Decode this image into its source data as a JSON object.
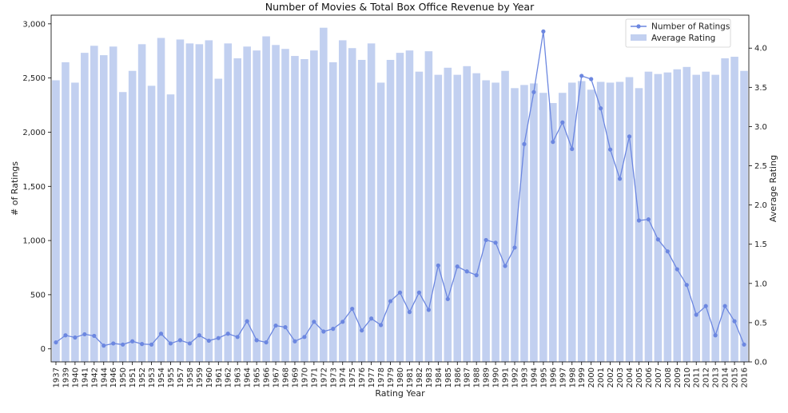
{
  "chart_data": {
    "type": "bar+line",
    "title": "Number of Movies & Total Box Office Revenue by Year",
    "xlabel": "Rating Year",
    "ylabel_left": "# of Ratings",
    "ylabel_right": "Average Rating",
    "ylim_left": [
      -120,
      3080
    ],
    "ylim_right": [
      0.0,
      4.42
    ],
    "yticks_left": [
      0,
      500,
      1000,
      1500,
      2000,
      2500,
      3000
    ],
    "yticks_left_labels": [
      "0",
      "500",
      "1,000",
      "1,500",
      "2,000",
      "2,500",
      "3,000"
    ],
    "yticks_right": [
      0.0,
      0.5,
      1.0,
      1.5,
      2.0,
      2.5,
      3.0,
      3.5,
      4.0
    ],
    "yticks_right_labels": [
      "0.0",
      "0.5",
      "1.0",
      "1.5",
      "2.0",
      "2.5",
      "3.0",
      "3.5",
      "4.0"
    ],
    "categories": [
      "1937",
      "1939",
      "1940",
      "1941",
      "1942",
      "1944",
      "1946",
      "1950",
      "1951",
      "1952",
      "1953",
      "1954",
      "1955",
      "1957",
      "1958",
      "1959",
      "1960",
      "1961",
      "1962",
      "1963",
      "1964",
      "1965",
      "1966",
      "1967",
      "1968",
      "1969",
      "1970",
      "1971",
      "1972",
      "1973",
      "1974",
      "1975",
      "1976",
      "1977",
      "1978",
      "1979",
      "1980",
      "1981",
      "1982",
      "1983",
      "1984",
      "1985",
      "1986",
      "1987",
      "1988",
      "1989",
      "1990",
      "1991",
      "1992",
      "1993",
      "1994",
      "1995",
      "1996",
      "1997",
      "1998",
      "1999",
      "2000",
      "2001",
      "2002",
      "2003",
      "2004",
      "2005",
      "2006",
      "2007",
      "2008",
      "2009",
      "2010",
      "2011",
      "2012",
      "2013",
      "2014",
      "2015",
      "2016"
    ],
    "legend": {
      "position": "top-right",
      "entries": [
        "Number of Ratings",
        "Average Rating"
      ]
    },
    "grid": false,
    "colors": {
      "line": "#6c87e0",
      "bar": "#c2d0f0"
    },
    "series": [
      {
        "name": "Average Rating",
        "type": "bar",
        "axis": "right",
        "values": [
          3.59,
          3.82,
          3.56,
          3.94,
          4.03,
          3.91,
          4.02,
          3.44,
          3.71,
          4.05,
          3.52,
          4.13,
          3.41,
          4.11,
          4.06,
          4.05,
          4.1,
          3.61,
          4.06,
          3.87,
          4.02,
          3.97,
          4.15,
          4.04,
          3.99,
          3.9,
          3.86,
          3.97,
          4.26,
          3.82,
          4.1,
          4.0,
          3.85,
          4.06,
          3.56,
          3.85,
          3.94,
          3.97,
          3.7,
          3.96,
          3.66,
          3.75,
          3.66,
          3.77,
          3.68,
          3.59,
          3.56,
          3.71,
          3.49,
          3.53,
          3.55,
          3.43,
          3.3,
          3.43,
          3.56,
          3.58,
          3.47,
          3.57,
          3.56,
          3.57,
          3.63,
          3.49,
          3.7,
          3.67,
          3.69,
          3.73,
          3.76,
          3.66,
          3.7,
          3.66,
          3.87,
          3.89,
          3.71
        ]
      },
      {
        "name": "Number of Ratings",
        "type": "line",
        "axis": "left",
        "values": [
          60,
          125,
          105,
          135,
          120,
          30,
          50,
          40,
          70,
          45,
          40,
          140,
          50,
          80,
          50,
          125,
          75,
          100,
          140,
          110,
          255,
          80,
          60,
          215,
          200,
          70,
          110,
          250,
          160,
          185,
          250,
          370,
          170,
          280,
          220,
          440,
          520,
          340,
          520,
          360,
          770,
          460,
          760,
          715,
          680,
          1005,
          980,
          765,
          935,
          1890,
          2370,
          2930,
          1910,
          2090,
          1845,
          2520,
          2490,
          2220,
          1840,
          1570,
          1960,
          1185,
          1195,
          1010,
          900,
          735,
          590,
          315,
          395,
          125,
          395,
          255,
          40
        ]
      }
    ]
  }
}
